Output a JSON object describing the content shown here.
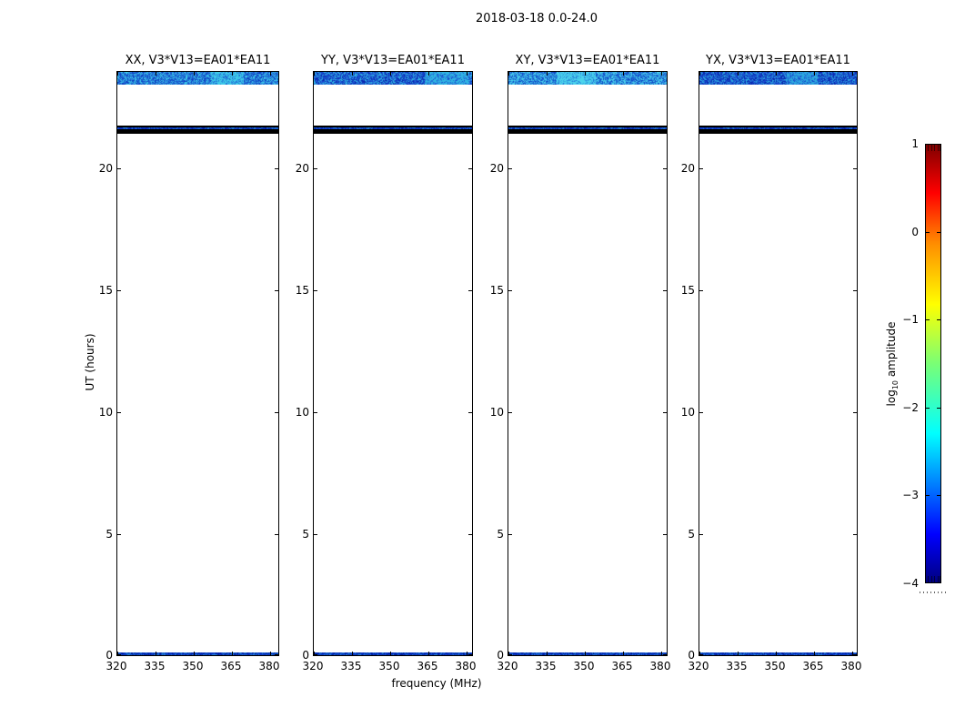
{
  "figure": {
    "title": "2018-03-18 0.0-24.0",
    "background": "#ffffff"
  },
  "panels": [
    {
      "id": "XX",
      "title": "XX, V3*V13=EA01*EA11"
    },
    {
      "id": "YY",
      "title": "YY, V3*V13=EA01*EA11"
    },
    {
      "id": "XY",
      "title": "XY, V3*V13=EA01*EA11"
    },
    {
      "id": "YX",
      "title": "YX, V3*V13=EA01*EA11"
    }
  ],
  "x_axis": {
    "label": "frequency (MHz)",
    "ticks": [
      "320",
      "335",
      "350",
      "365",
      "380"
    ]
  },
  "y_axis": {
    "label": "UT (hours)",
    "ticks": [
      "0",
      "5",
      "10",
      "15",
      "20"
    ]
  },
  "colorbar": {
    "label_prefix": "log",
    "label_sub": "10",
    "label_suffix": " amplitude",
    "ticks": [
      "1",
      "0",
      "−1",
      "−2",
      "−3",
      "−4"
    ]
  },
  "chart_data": {
    "type": "heatmap",
    "title": "2018-03-18 0.0-24.0",
    "xlabel": "frequency (MHz)",
    "ylabel": "UT (hours)",
    "xlim": [
      320,
      383
    ],
    "ylim": [
      0,
      24
    ],
    "x_ticks": [
      320,
      335,
      350,
      365,
      380
    ],
    "y_ticks": [
      0,
      5,
      10,
      15,
      20
    ],
    "colorbar": {
      "label": "log10 amplitude",
      "range": [
        -4,
        1
      ],
      "ticks": [
        1,
        0,
        -1,
        -2,
        -3,
        -4
      ],
      "colormap": "jet"
    },
    "layout_hint": "4 side-by-side dynamic-spectrum panels sharing axes; background of each panel is blank (white); colorbar at right",
    "panels": [
      {
        "label": "XX, V3*V13=EA01*EA11",
        "features": {
          "top_noise_band": {
            "ut_range": [
              23.5,
              24.0
            ],
            "approx_log10_amp": [
              -3.2,
              -2.2
            ],
            "colors": [
              "#0d3ec0",
              "#1e62d2",
              "#2a8ade",
              "#3ecbe8"
            ],
            "bright_patch_xfrac": [
              0.58,
              0.78
            ]
          },
          "thin_black_line_ut": 21.75,
          "blue_speckle_line_ut": 21.68,
          "black_band_ut_range": [
            21.4,
            21.6
          ],
          "bottom_noise_line_ut_range": [
            0.0,
            0.1
          ]
        }
      },
      {
        "label": "YY, V3*V13=EA01*EA11",
        "features": {
          "top_noise_band": {
            "ut_range": [
              23.5,
              24.0
            ],
            "approx_log10_amp": [
              -3.5,
              -2.5
            ],
            "colors": [
              "#0a28b0",
              "#1646cc",
              "#2470d8",
              "#30b4e2"
            ],
            "bright_patch_xfrac": [
              0.7,
              0.98
            ]
          },
          "thin_black_line_ut": 21.75,
          "blue_speckle_line_ut": 21.68,
          "black_band_ut_range": [
            21.4,
            21.6
          ],
          "bottom_noise_line_ut_range": [
            0.0,
            0.1
          ]
        }
      },
      {
        "label": "XY, V3*V13=EA01*EA11",
        "features": {
          "top_noise_band": {
            "ut_range": [
              23.5,
              24.0
            ],
            "approx_log10_amp": [
              -3.1,
              -2.1
            ],
            "colors": [
              "#0f46c4",
              "#2272d8",
              "#35a8e2",
              "#4cd4ec"
            ],
            "bright_patch_xfrac": [
              0.3,
              0.55
            ]
          },
          "thin_black_line_ut": 21.75,
          "blue_speckle_line_ut": 21.68,
          "black_band_ut_range": [
            21.4,
            21.6
          ],
          "bottom_noise_line_ut_range": [
            0.0,
            0.1
          ]
        }
      },
      {
        "label": "YX, V3*V13=EA01*EA11",
        "features": {
          "top_noise_band": {
            "ut_range": [
              23.5,
              24.0
            ],
            "approx_log10_amp": [
              -3.5,
              -2.5
            ],
            "colors": [
              "#0826ae",
              "#1544ca",
              "#2066d4",
              "#2ca8de"
            ],
            "bright_patch_xfrac": [
              0.55,
              0.75
            ]
          },
          "thin_black_line_ut": 21.75,
          "blue_speckle_line_ut": 21.68,
          "black_band_ut_range": [
            21.4,
            21.6
          ],
          "bottom_noise_line_ut_range": [
            0.0,
            0.1
          ]
        }
      }
    ],
    "speckle_line_colors": [
      "#001ea0",
      "#0a38c4",
      "#0a38c4",
      "#1e78d2"
    ]
  }
}
